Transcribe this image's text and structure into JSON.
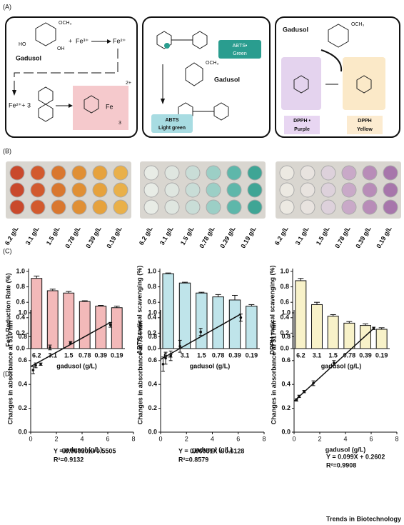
{
  "panel_labels": [
    "(A)",
    "(B)",
    "(C)",
    "(D)"
  ],
  "panel_a": {
    "box1": {
      "gadusol": "Gadusol",
      "plus": "+",
      "fe3": "Fe³⁺",
      "fe2": "Fe²⁺",
      "och3": "OCH₃",
      "ho": "HO",
      "oh": "OH",
      "fe2_3": "Fe²⁺+ 3",
      "fe": "Fe",
      "charge": "2+",
      "count": "3"
    },
    "box2": {
      "abts_radical": "ABTS•",
      "green": "Green",
      "gadusol": "Gadusol",
      "och3": "OCH₃",
      "abts": "ABTS",
      "light_green": "Light green"
    },
    "box3": {
      "gadusol": "Gadusol",
      "och3": "OCH₃",
      "dpph_radical": "DPPH •",
      "purple": "Purple",
      "dpph": "DPPH",
      "yellow": "Yellow"
    }
  },
  "panel_b": {
    "labels": [
      "6.2 g/L",
      "3.1 g/L",
      "1.5 g/L",
      "0.78 g/L",
      "0.39 g/L",
      "0.19 g/L"
    ]
  },
  "chart_data": [
    {
      "type": "bar",
      "ylabel": "Fe³⁺ Reduction Rate (%)",
      "xlabel": "gadusol (g/L)",
      "categories": [
        "6.2",
        "3.1",
        "1.5",
        "0.78",
        "0.39",
        "0.19"
      ],
      "values": [
        0.91,
        0.75,
        0.72,
        0.61,
        0.55,
        0.53
      ],
      "errors": [
        0.03,
        0.02,
        0.02,
        0.01,
        0.01,
        0.02
      ],
      "color": "#f3b9b9",
      "ylim": [
        0,
        1.0
      ],
      "yticks": [
        {
          "value": 0,
          "label": "0.0"
        },
        0.2,
        0.4,
        0.6,
        0.8,
        {
          "value": 1,
          "label": "1.0"
        }
      ]
    },
    {
      "type": "bar",
      "ylabel": "ABTS radical scavenging (%)",
      "xlabel": "gadusol (g/L)",
      "categories": [
        "6.2",
        "3.1",
        "1.5",
        "0.78",
        "0.39",
        "0.19"
      ],
      "values": [
        0.97,
        0.85,
        0.72,
        0.67,
        0.63,
        0.55
      ],
      "errors": [
        0.01,
        0.01,
        0.01,
        0.03,
        0.06,
        0.02
      ],
      "color": "#bfe4ea",
      "ylim": [
        0,
        1.0
      ],
      "yticks": [
        {
          "value": 0,
          "label": "0.0"
        },
        0.2,
        0.4,
        0.6,
        0.8,
        {
          "value": 1,
          "label": "1.0"
        }
      ]
    },
    {
      "type": "bar",
      "ylabel": "DPPH radical scavenging (%)",
      "xlabel": "gadusol (g/L)",
      "categories": [
        "6.2",
        "3.1",
        "1.5",
        "0.78",
        "0.39",
        "0.19"
      ],
      "values": [
        0.88,
        0.57,
        0.42,
        0.33,
        0.3,
        0.25
      ],
      "errors": [
        0.03,
        0.03,
        0.02,
        0.02,
        0.02,
        0.02
      ],
      "color": "#f8f2c9",
      "ylim": [
        0,
        1.0
      ],
      "yticks": [
        {
          "value": 0,
          "label": "0.0"
        },
        0.2,
        0.4,
        0.6,
        0.8,
        {
          "value": 1,
          "label": "1.0"
        }
      ]
    },
    {
      "type": "scatter",
      "ylabel": "Changes in absorbance at 510 nm",
      "xlabel": "gadusol (g/L)",
      "x": [
        0.19,
        0.39,
        0.78,
        1.5,
        3.1,
        6.2
      ],
      "values": [
        0.52,
        0.56,
        0.57,
        0.71,
        0.75,
        0.9
      ],
      "errors": [
        0.03,
        0.02,
        0.01,
        0.02,
        0.01,
        0.02
      ],
      "fit": {
        "x": [
          0,
          6.2
        ],
        "values": [
          0.55,
          0.92
        ]
      },
      "equation": "Y = 0.06030X+0.5505",
      "r2": "R²=0.9132",
      "xlim": [
        0,
        8
      ],
      "xticks": [
        0,
        2,
        4,
        6,
        8
      ],
      "ylim": [
        0,
        1.0
      ],
      "yticks": [
        {
          "value": 0,
          "label": "0.0"
        },
        0.2,
        0.4,
        0.6,
        0.8,
        {
          "value": 1,
          "label": "1.0"
        }
      ]
    },
    {
      "type": "scatter",
      "ylabel": "Changes in absorbance at 734 nm",
      "xlabel": "gadusol (g/L)",
      "x": [
        0.19,
        0.39,
        0.78,
        1.5,
        3.1,
        6.2
      ],
      "values": [
        0.57,
        0.62,
        0.64,
        0.72,
        0.84,
        0.96
      ],
      "errors": [
        0.06,
        0.05,
        0.04,
        0.05,
        0.03,
        0.03
      ],
      "fit": {
        "x": [
          0,
          6.2
        ],
        "values": [
          0.61,
          0.99
        ]
      },
      "equation": "Y = 0.06031X + 0.6128",
      "r2": "R²=0.8579",
      "xlim": [
        0,
        8
      ],
      "xticks": [
        0,
        2,
        4,
        6,
        8
      ],
      "ylim": [
        0,
        1.0
      ],
      "yticks": [
        {
          "value": 0,
          "label": "0.0"
        },
        0.2,
        0.4,
        0.6,
        0.8,
        {
          "value": 1,
          "label": "1.0"
        }
      ]
    },
    {
      "type": "scatter",
      "ylabel": "Changes in absorbance at 517 nm",
      "xlabel": "gadusol (g/L)",
      "x": [
        0.19,
        0.39,
        0.78,
        1.5,
        3.1,
        6.2
      ],
      "values": [
        0.27,
        0.3,
        0.34,
        0.41,
        0.58,
        0.87
      ],
      "errors": [
        0.01,
        0.01,
        0.01,
        0.02,
        0.02,
        0.01
      ],
      "fit": {
        "x": [
          0,
          6.2
        ],
        "values": [
          0.26,
          0.87
        ]
      },
      "equation": "Y = 0.099X + 0.2602",
      "r2": "R²=0.9908",
      "xlim": [
        0,
        8
      ],
      "xticks": [
        0,
        2,
        4,
        6,
        8
      ],
      "ylim": [
        0,
        1.0
      ],
      "yticks": [
        {
          "value": 0,
          "label": "0.0"
        },
        0.2,
        0.4,
        0.6,
        0.8,
        {
          "value": 1,
          "label": "1.0"
        }
      ]
    }
  ],
  "footer": "Trends in Biotechnology"
}
